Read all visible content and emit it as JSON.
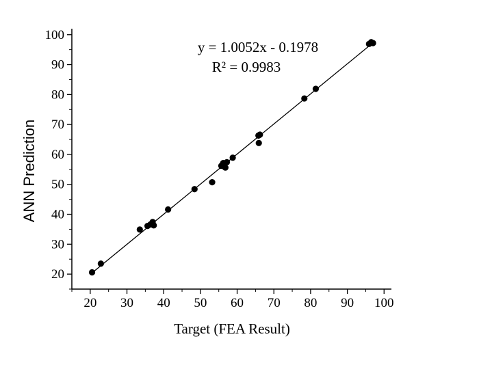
{
  "chart_data": {
    "type": "scatter",
    "xlabel": "Target (FEA Result)",
    "ylabel": "ANN Prediction",
    "xlim": [
      15,
      102
    ],
    "ylim": [
      15,
      102
    ],
    "x_ticks": [
      20,
      30,
      40,
      50,
      60,
      70,
      80,
      90,
      100
    ],
    "y_ticks": [
      20,
      30,
      40,
      50,
      60,
      70,
      80,
      90,
      100
    ],
    "grid": false,
    "legend": "none",
    "annotations": [
      "y = 1.0052x - 0.1978",
      "R² = 0.9983"
    ],
    "fit_line": {
      "slope": 1.0052,
      "intercept": -0.1978,
      "x_range": [
        20.5,
        97
      ]
    },
    "points": [
      {
        "x": 20.5,
        "y": 20.6
      },
      {
        "x": 22.9,
        "y": 23.5
      },
      {
        "x": 33.5,
        "y": 34.9
      },
      {
        "x": 35.6,
        "y": 36.1
      },
      {
        "x": 36.4,
        "y": 36.6
      },
      {
        "x": 37.0,
        "y": 37.4
      },
      {
        "x": 37.3,
        "y": 36.3
      },
      {
        "x": 41.2,
        "y": 41.6
      },
      {
        "x": 48.4,
        "y": 48.4
      },
      {
        "x": 53.2,
        "y": 50.7
      },
      {
        "x": 55.7,
        "y": 56.2
      },
      {
        "x": 56.2,
        "y": 57.1
      },
      {
        "x": 56.4,
        "y": 56.0
      },
      {
        "x": 56.8,
        "y": 55.6
      },
      {
        "x": 57.2,
        "y": 57.4
      },
      {
        "x": 58.8,
        "y": 58.9
      },
      {
        "x": 65.8,
        "y": 66.3
      },
      {
        "x": 66.2,
        "y": 66.6
      },
      {
        "x": 65.9,
        "y": 63.8
      },
      {
        "x": 78.3,
        "y": 78.7
      },
      {
        "x": 81.4,
        "y": 81.9
      },
      {
        "x": 95.9,
        "y": 96.9
      },
      {
        "x": 96.5,
        "y": 97.5
      },
      {
        "x": 97.0,
        "y": 97.2
      }
    ]
  }
}
